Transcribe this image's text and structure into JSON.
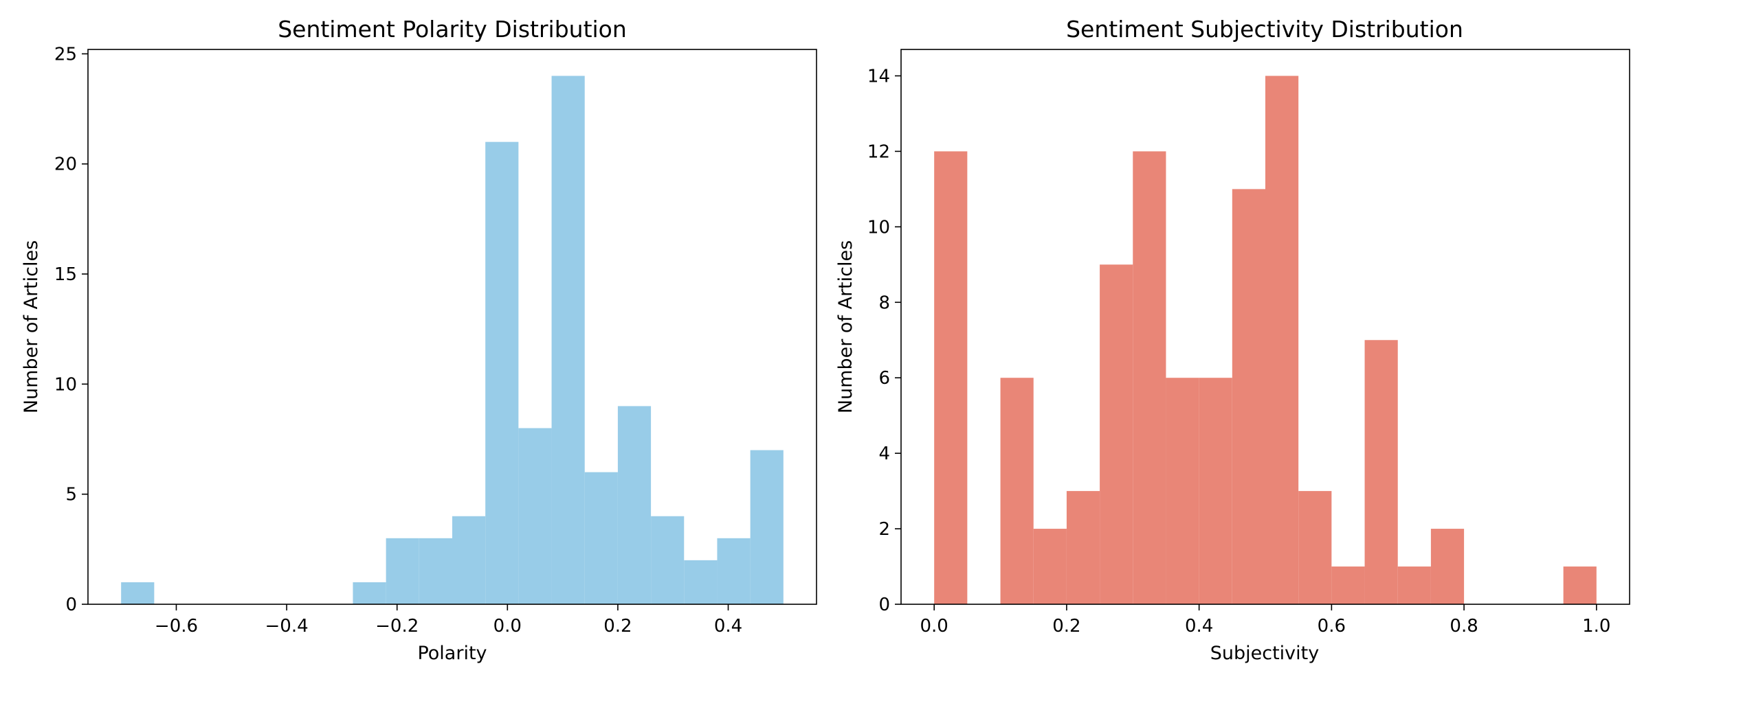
{
  "figure": {
    "background": "#ffffff"
  },
  "chart_data": [
    {
      "type": "bar",
      "title": "Sentiment Polarity Distribution",
      "xlabel": "Polarity",
      "ylabel": "Number of Articles",
      "color": "#98cce8",
      "bin_edges": [
        -0.7,
        -0.64,
        -0.58,
        -0.52,
        -0.46,
        -0.4,
        -0.34,
        -0.28,
        -0.22,
        -0.16,
        -0.1,
        -0.04,
        0.02,
        0.08,
        0.14,
        0.2,
        0.26,
        0.32,
        0.38,
        0.44,
        0.5
      ],
      "values": [
        1,
        0,
        0,
        0,
        0,
        0,
        0,
        1,
        3,
        3,
        4,
        21,
        8,
        24,
        6,
        9,
        4,
        2,
        3,
        7
      ],
      "xlim": [
        -0.76,
        0.56
      ],
      "ylim": [
        0,
        25.2
      ],
      "xticks": [
        -0.6,
        -0.4,
        -0.2,
        0.0,
        0.2,
        0.4
      ],
      "xtick_labels": [
        "−0.6",
        "−0.4",
        "−0.2",
        "0.0",
        "0.2",
        "0.4"
      ],
      "yticks": [
        0,
        5,
        10,
        15,
        20,
        25
      ],
      "ytick_labels": [
        "0",
        "5",
        "10",
        "15",
        "20",
        "25"
      ],
      "grid": false,
      "legend": false
    },
    {
      "type": "bar",
      "title": "Sentiment Subjectivity Distribution",
      "xlabel": "Subjectivity",
      "ylabel": "Number of Articles",
      "color": "#e98677",
      "bin_edges": [
        0.0,
        0.05,
        0.1,
        0.15,
        0.2,
        0.25,
        0.3,
        0.35,
        0.4,
        0.45,
        0.5,
        0.55,
        0.6,
        0.65,
        0.7,
        0.75,
        0.8,
        0.85,
        0.9,
        0.95,
        1.0
      ],
      "values": [
        12,
        0,
        6,
        2,
        3,
        9,
        12,
        6,
        6,
        11,
        14,
        3,
        1,
        7,
        1,
        2,
        0,
        0,
        0,
        1
      ],
      "xlim": [
        -0.05,
        1.05
      ],
      "ylim": [
        0,
        14.7
      ],
      "xticks": [
        0.0,
        0.2,
        0.4,
        0.6,
        0.8,
        1.0
      ],
      "xtick_labels": [
        "0.0",
        "0.2",
        "0.4",
        "0.6",
        "0.8",
        "1.0"
      ],
      "yticks": [
        0,
        2,
        4,
        6,
        8,
        10,
        12,
        14
      ],
      "ytick_labels": [
        "0",
        "2",
        "4",
        "6",
        "8",
        "10",
        "12",
        "14"
      ],
      "grid": false,
      "legend": false
    }
  ]
}
